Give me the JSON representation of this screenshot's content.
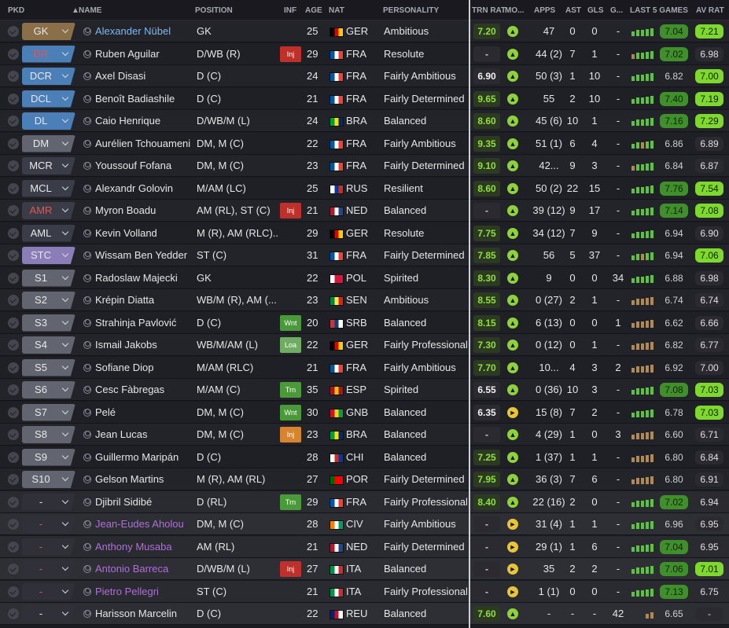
{
  "colors": {
    "gold": "#8b6f48",
    "blue": "#4a7fb8",
    "steel": "#3e5670",
    "grey": "#626570",
    "dark": "#3a3d47",
    "purple": "#8b7db8",
    "green": "#4b9a3a",
    "red": "#c0302a",
    "orange": "#d8842e",
    "trnGreen": "#8fe03a",
    "ratGreen": "#7fd82e"
  },
  "headers": {
    "pkd": "PKD",
    "name": "NAME",
    "position": "POSITION",
    "inf": "INF",
    "age": "AGE",
    "nat": "NAT",
    "personality": "PERSONALITY",
    "trn": "TRN RAT",
    "mo": "MO...",
    "apps": "APPS",
    "ast": "AST",
    "gls": "GLS",
    "g": "G...",
    "last5": "LAST 5 GAMES",
    "avrat": "AV RAT"
  },
  "rows": [
    {
      "pkd": "GK",
      "pc": "gold",
      "name": "Alexander Nübel",
      "nc": "link",
      "position": "GK",
      "inf": "",
      "ic": "",
      "age": "25",
      "nat": "GER",
      "natColors": [
        "#000000",
        "#dd0000",
        "#ffce00"
      ],
      "pers": "Ambitious",
      "trn": "7.20",
      "tc": "g",
      "mo": "g",
      "apps": "47",
      "ast": "0",
      "gls": "0",
      "g": "-",
      "form": "ggggg",
      "last": "7.04",
      "lh": 1,
      "av": "7.21",
      "ah": 1
    },
    {
      "pkd": "DR",
      "pc": "blue",
      "pt": "red",
      "name": "Ruben Aguilar",
      "nc": "",
      "position": "D/WB (R)",
      "inf": "Inj",
      "ic": "red",
      "age": "29",
      "nat": "FRA",
      "natColors": [
        "#0055a4",
        "#ffffff",
        "#ef4135"
      ],
      "pers": "Resolute",
      "trn": "-",
      "tc": "n",
      "mo": "g",
      "apps": "44 (2)",
      "ast": "7",
      "gls": "1",
      "g": "-",
      "form": "ogggg",
      "last": "7.02",
      "lh": 1,
      "av": "6.98",
      "ah": 0
    },
    {
      "pkd": "DCR",
      "pc": "blue",
      "name": "Axel Disasi",
      "nc": "",
      "position": "D (C)",
      "inf": "",
      "ic": "",
      "age": "24",
      "nat": "FRA",
      "natColors": [
        "#0055a4",
        "#ffffff",
        "#ef4135"
      ],
      "pers": "Fairly Ambitious",
      "trn": "6.90",
      "tc": "w",
      "mo": "g",
      "apps": "50 (3)",
      "ast": "1",
      "gls": "10",
      "g": "-",
      "form": "ggggg",
      "last": "6.82",
      "lh": 0,
      "av": "7.00",
      "ah": 1
    },
    {
      "pkd": "DCL",
      "pc": "blue",
      "name": "Benoît Badiashile",
      "nc": "",
      "position": "D (C)",
      "inf": "",
      "ic": "",
      "age": "21",
      "nat": "FRA",
      "natColors": [
        "#0055a4",
        "#ffffff",
        "#ef4135"
      ],
      "pers": "Fairly Determined",
      "trn": "9.65",
      "tc": "g",
      "mo": "g",
      "apps": "55",
      "ast": "2",
      "gls": "10",
      "g": "-",
      "form": "ggggg",
      "last": "7.40",
      "lh": 1,
      "av": "7.19",
      "ah": 1
    },
    {
      "pkd": "DL",
      "pc": "blue",
      "name": "Caio Henrique",
      "nc": "",
      "position": "D/WB/M (L)",
      "inf": "",
      "ic": "",
      "age": "24",
      "nat": "BRA",
      "natColors": [
        "#009c3b",
        "#ffdf00",
        "#002776"
      ],
      "pers": "Balanced",
      "trn": "8.60",
      "tc": "g",
      "mo": "g",
      "apps": "45 (6)",
      "ast": "10",
      "gls": "1",
      "g": "-",
      "form": "ggggg",
      "last": "7.16",
      "lh": 1,
      "av": "7.29",
      "ah": 1
    },
    {
      "pkd": "DM",
      "pc": "grey",
      "name": "Aurélien Tchouameni",
      "nc": "",
      "position": "DM, M (C)",
      "inf": "",
      "ic": "",
      "age": "22",
      "nat": "FRA",
      "natColors": [
        "#0055a4",
        "#ffffff",
        "#ef4135"
      ],
      "pers": "Fairly Ambitious",
      "trn": "9.35",
      "tc": "g",
      "mo": "g",
      "apps": "51 (1)",
      "ast": "6",
      "gls": "4",
      "g": "-",
      "form": "ggogg",
      "last": "6.86",
      "lh": 0,
      "av": "6.89",
      "ah": 0
    },
    {
      "pkd": "MCR",
      "pc": "dark",
      "name": "Youssouf Fofana",
      "nc": "",
      "position": "DM, M (C)",
      "inf": "",
      "ic": "",
      "age": "23",
      "nat": "FRA",
      "natColors": [
        "#0055a4",
        "#ffffff",
        "#ef4135"
      ],
      "pers": "Fairly Determined",
      "trn": "9.10",
      "tc": "g",
      "mo": "g",
      "apps": "42...",
      "ast": "9",
      "gls": "3",
      "g": "-",
      "form": "ogggg",
      "last": "6.84",
      "lh": 0,
      "av": "6.87",
      "ah": 0
    },
    {
      "pkd": "MCL",
      "pc": "dark",
      "name": "Alexandr Golovin",
      "nc": "",
      "position": "M/AM (LC)",
      "inf": "",
      "ic": "",
      "age": "25",
      "nat": "RUS",
      "natColors": [
        "#ffffff",
        "#0039a6",
        "#d52b1e"
      ],
      "pers": "Resilient",
      "trn": "8.60",
      "tc": "g",
      "mo": "g",
      "apps": "50 (2)",
      "ast": "22",
      "gls": "15",
      "g": "-",
      "form": "ggggg",
      "last": "7.76",
      "lh": 1,
      "av": "7.54",
      "ah": 1
    },
    {
      "pkd": "AMR",
      "pc": "dark",
      "pt": "red",
      "name": "Myron Boadu",
      "nc": "",
      "position": "AM (RL), ST (C)",
      "inf": "Inj",
      "ic": "red",
      "age": "21",
      "nat": "NED",
      "natColors": [
        "#ae1c28",
        "#ffffff",
        "#21468b"
      ],
      "pers": "Balanced",
      "trn": "-",
      "tc": "n",
      "mo": "g",
      "apps": "39 (12)",
      "ast": "9",
      "gls": "17",
      "g": "-",
      "form": "ggggg",
      "last": "7.14",
      "lh": 1,
      "av": "7.08",
      "ah": 1
    },
    {
      "pkd": "AML",
      "pc": "dark",
      "name": "Kevin Volland",
      "nc": "",
      "position": "M (R), AM (RLC)...",
      "inf": "",
      "ic": "",
      "age": "29",
      "nat": "GER",
      "natColors": [
        "#000000",
        "#dd0000",
        "#ffce00"
      ],
      "pers": "Resolute",
      "trn": "7.75",
      "tc": "g",
      "mo": "g",
      "apps": "34 (12)",
      "ast": "7",
      "gls": "9",
      "g": "-",
      "form": "ggggg",
      "last": "6.94",
      "lh": 0,
      "av": "6.90",
      "ah": 0
    },
    {
      "pkd": "STC",
      "pc": "purple",
      "name": "Wissam Ben Yedder",
      "nc": "",
      "position": "ST (C)",
      "inf": "",
      "ic": "",
      "age": "31",
      "nat": "FRA",
      "natColors": [
        "#0055a4",
        "#ffffff",
        "#ef4135"
      ],
      "pers": "Fairly Determined",
      "trn": "7.85",
      "tc": "g",
      "mo": "g",
      "apps": "56",
      "ast": "5",
      "gls": "37",
      "g": "-",
      "form": "ggogg",
      "last": "6.94",
      "lh": 0,
      "av": "7.06",
      "ah": 1
    },
    {
      "pkd": "S1",
      "pc": "grey",
      "name": "Radoslaw Majecki",
      "nc": "",
      "position": "GK",
      "inf": "",
      "ic": "",
      "age": "22",
      "nat": "POL",
      "natColors": [
        "#ffffff",
        "#dc143c",
        "#dc143c"
      ],
      "pers": "Spirited",
      "trn": "8.30",
      "tc": "g",
      "mo": "g",
      "apps": "9",
      "ast": "0",
      "gls": "0",
      "g": "34",
      "form": "ggggg",
      "last": "6.88",
      "lh": 0,
      "av": "6.98",
      "ah": 0
    },
    {
      "pkd": "S2",
      "pc": "grey",
      "name": "Krépin Diatta",
      "nc": "",
      "position": "WB/M (R), AM (...",
      "inf": "",
      "ic": "",
      "age": "23",
      "nat": "SEN",
      "natColors": [
        "#00853f",
        "#fdef42",
        "#e31b23"
      ],
      "pers": "Ambitious",
      "trn": "8.55",
      "tc": "g",
      "mo": "g",
      "apps": "0 (27)",
      "ast": "2",
      "gls": "1",
      "g": "-",
      "form": "ooooo",
      "last": "6.74",
      "lh": 0,
      "av": "6.74",
      "ah": 0
    },
    {
      "pkd": "S3",
      "pc": "grey",
      "name": "Strahinja Pavlović",
      "nc": "",
      "position": "D (C)",
      "inf": "Wnt",
      "ic": "green",
      "age": "20",
      "nat": "SRB",
      "natColors": [
        "#c6363c",
        "#0c4076",
        "#ffffff"
      ],
      "pers": "Balanced",
      "trn": "8.15",
      "tc": "g",
      "mo": "g",
      "apps": "6 (13)",
      "ast": "0",
      "gls": "0",
      "g": "1",
      "form": "ooooo",
      "last": "6.62",
      "lh": 0,
      "av": "6.66",
      "ah": 0
    },
    {
      "pkd": "S4",
      "pc": "grey",
      "name": "Ismail Jakobs",
      "nc": "",
      "position": "WB/M/AM (L)",
      "inf": "Loa",
      "ic": "lightgreen",
      "age": "22",
      "nat": "GER",
      "natColors": [
        "#000000",
        "#dd0000",
        "#ffce00"
      ],
      "pers": "Fairly Professional",
      "trn": "7.30",
      "tc": "g",
      "mo": "g",
      "apps": "0 (12)",
      "ast": "0",
      "gls": "1",
      "g": "-",
      "form": "ooooo",
      "last": "6.82",
      "lh": 0,
      "av": "6.77",
      "ah": 0
    },
    {
      "pkd": "S5",
      "pc": "grey",
      "name": "Sofiane Diop",
      "nc": "",
      "position": "M/AM (RLC)",
      "inf": "",
      "ic": "",
      "age": "21",
      "nat": "FRA",
      "natColors": [
        "#0055a4",
        "#ffffff",
        "#ef4135"
      ],
      "pers": "Fairly Ambitious",
      "trn": "7.70",
      "tc": "g",
      "mo": "g",
      "apps": "10...",
      "ast": "4",
      "gls": "3",
      "g": "2",
      "form": "ooooo",
      "last": "6.92",
      "lh": 0,
      "av": "7.00",
      "ah": 0
    },
    {
      "pkd": "S6",
      "pc": "grey",
      "name": "Cesc Fàbregas",
      "nc": "",
      "position": "M/AM (C)",
      "inf": "Trn",
      "ic": "green",
      "age": "35",
      "nat": "ESP",
      "natColors": [
        "#aa151b",
        "#f1bf00",
        "#aa151b"
      ],
      "pers": "Spirited",
      "trn": "6.55",
      "tc": "w",
      "mo": "g",
      "apps": "0 (36)",
      "ast": "10",
      "gls": "3",
      "g": "-",
      "form": "ggggg",
      "last": "7.08",
      "lh": 1,
      "av": "7.03",
      "ah": 1
    },
    {
      "pkd": "S7",
      "pc": "grey",
      "name": "Pelé",
      "nc": "",
      "position": "DM, M (C)",
      "inf": "Wnt",
      "ic": "green",
      "age": "30",
      "nat": "GNB",
      "natColors": [
        "#ce1126",
        "#fcd116",
        "#009e49"
      ],
      "pers": "Balanced",
      "trn": "6.35",
      "tc": "w",
      "mo": "y",
      "apps": "15 (8)",
      "ast": "7",
      "gls": "2",
      "g": "-",
      "form": "ggggg",
      "last": "6.78",
      "lh": 0,
      "av": "7.03",
      "ah": 1
    },
    {
      "pkd": "S8",
      "pc": "grey",
      "name": "Jean Lucas",
      "nc": "",
      "position": "DM, M (C)",
      "inf": "Inj",
      "ic": "orange",
      "age": "23",
      "nat": "BRA",
      "natColors": [
        "#009c3b",
        "#ffdf00",
        "#002776"
      ],
      "pers": "Balanced",
      "trn": "-",
      "tc": "n",
      "mo": "g",
      "apps": "4 (29)",
      "ast": "1",
      "gls": "0",
      "g": "3",
      "form": "ooooo",
      "last": "6.60",
      "lh": 0,
      "av": "6.71",
      "ah": 0
    },
    {
      "pkd": "S9",
      "pc": "grey",
      "name": "Guillermo Maripán",
      "nc": "",
      "position": "D (C)",
      "inf": "",
      "ic": "",
      "age": "28",
      "nat": "CHI",
      "natColors": [
        "#ffffff",
        "#d52b1e",
        "#0039a6"
      ],
      "pers": "Balanced",
      "trn": "7.25",
      "tc": "g",
      "mo": "g",
      "apps": "1 (37)",
      "ast": "1",
      "gls": "1",
      "g": "-",
      "form": "ooooo",
      "last": "6.80",
      "lh": 0,
      "av": "6.84",
      "ah": 0
    },
    {
      "pkd": "S10",
      "pc": "grey",
      "name": "Gelson Martins",
      "nc": "",
      "position": "M (R), AM (RL)",
      "inf": "",
      "ic": "",
      "age": "27",
      "nat": "POR",
      "natColors": [
        "#006600",
        "#ff0000",
        "#ff0000"
      ],
      "pers": "Fairly Determined",
      "trn": "7.95",
      "tc": "g",
      "mo": "g",
      "apps": "36 (3)",
      "ast": "7",
      "gls": "6",
      "g": "-",
      "form": "ooooo",
      "last": "6.80",
      "lh": 0,
      "av": "6.91",
      "ah": 0
    },
    {
      "pkd": "-",
      "pc": "blank",
      "name": "Djibril Sidibé",
      "nc": "",
      "position": "D (RL)",
      "inf": "Trn",
      "ic": "green",
      "age": "29",
      "nat": "FRA",
      "natColors": [
        "#0055a4",
        "#ffffff",
        "#ef4135"
      ],
      "pers": "Fairly Professional",
      "trn": "8.40",
      "tc": "g",
      "mo": "g",
      "apps": "22 (16)",
      "ast": "2",
      "gls": "0",
      "g": "-",
      "form": "ggggg",
      "last": "7.02",
      "lh": 1,
      "av": "6.94",
      "ah": 0
    },
    {
      "pkd": "-",
      "pc": "blank",
      "pt": "red",
      "name": "Jean-Eudes Aholou",
      "nc": "loan",
      "position": "DM, M (C)",
      "inf": "",
      "ic": "",
      "age": "28",
      "nat": "CIV",
      "natColors": [
        "#f77f00",
        "#ffffff",
        "#009e60"
      ],
      "pers": "Fairly Ambitious",
      "trn": "-",
      "tc": "n",
      "mo": "y",
      "apps": "31 (4)",
      "ast": "1",
      "gls": "1",
      "g": "-",
      "form": "ggggg",
      "last": "6.96",
      "lh": 0,
      "av": "6.95",
      "ah": 0
    },
    {
      "pkd": "-",
      "pc": "blank",
      "pt": "red",
      "name": "Anthony Musaba",
      "nc": "loan",
      "position": "AM (RL)",
      "inf": "",
      "ic": "",
      "age": "21",
      "nat": "NED",
      "natColors": [
        "#ae1c28",
        "#ffffff",
        "#21468b"
      ],
      "pers": "Fairly Determined",
      "trn": "-",
      "tc": "n",
      "mo": "y",
      "apps": "29 (1)",
      "ast": "1",
      "gls": "6",
      "g": "-",
      "form": "ggggg",
      "last": "7.04",
      "lh": 1,
      "av": "6.95",
      "ah": 0
    },
    {
      "pkd": "-",
      "pc": "blank",
      "pt": "red",
      "name": "Antonio Barreca",
      "nc": "loan",
      "position": "D/WB/M (L)",
      "inf": "Inj",
      "ic": "red",
      "age": "27",
      "nat": "ITA",
      "natColors": [
        "#009246",
        "#ffffff",
        "#ce2b37"
      ],
      "pers": "Balanced",
      "trn": "-",
      "tc": "n",
      "mo": "y",
      "apps": "35",
      "ast": "2",
      "gls": "2",
      "g": "-",
      "form": "ggggg",
      "last": "7.06",
      "lh": 1,
      "av": "7.01",
      "ah": 1
    },
    {
      "pkd": "-",
      "pc": "blank",
      "pt": "red",
      "name": "Pietro Pellegri",
      "nc": "loan",
      "position": "ST (C)",
      "inf": "",
      "ic": "",
      "age": "21",
      "nat": "ITA",
      "natColors": [
        "#009246",
        "#ffffff",
        "#ce2b37"
      ],
      "pers": "Fairly Professional",
      "trn": "-",
      "tc": "n",
      "mo": "y",
      "apps": "1 (1)",
      "ast": "0",
      "gls": "0",
      "g": "-",
      "form": "ggggg",
      "last": "7.13",
      "lh": 1,
      "av": "6.75",
      "ah": 0
    },
    {
      "pkd": "-",
      "pc": "blank",
      "name": "Harisson Marcelin",
      "nc": "",
      "position": "D (C)",
      "inf": "",
      "ic": "",
      "age": "22",
      "nat": "REU",
      "natColors": [
        "#012169",
        "#c8102e",
        "#ffffff"
      ],
      "pers": "Balanced",
      "trn": "7.60",
      "tc": "g",
      "mo": "g",
      "apps": "-",
      "ast": "-",
      "gls": "-",
      "g": "42",
      "form": "oo",
      "last": "6.65",
      "lh": 0,
      "av": "-",
      "ah": 0
    }
  ]
}
